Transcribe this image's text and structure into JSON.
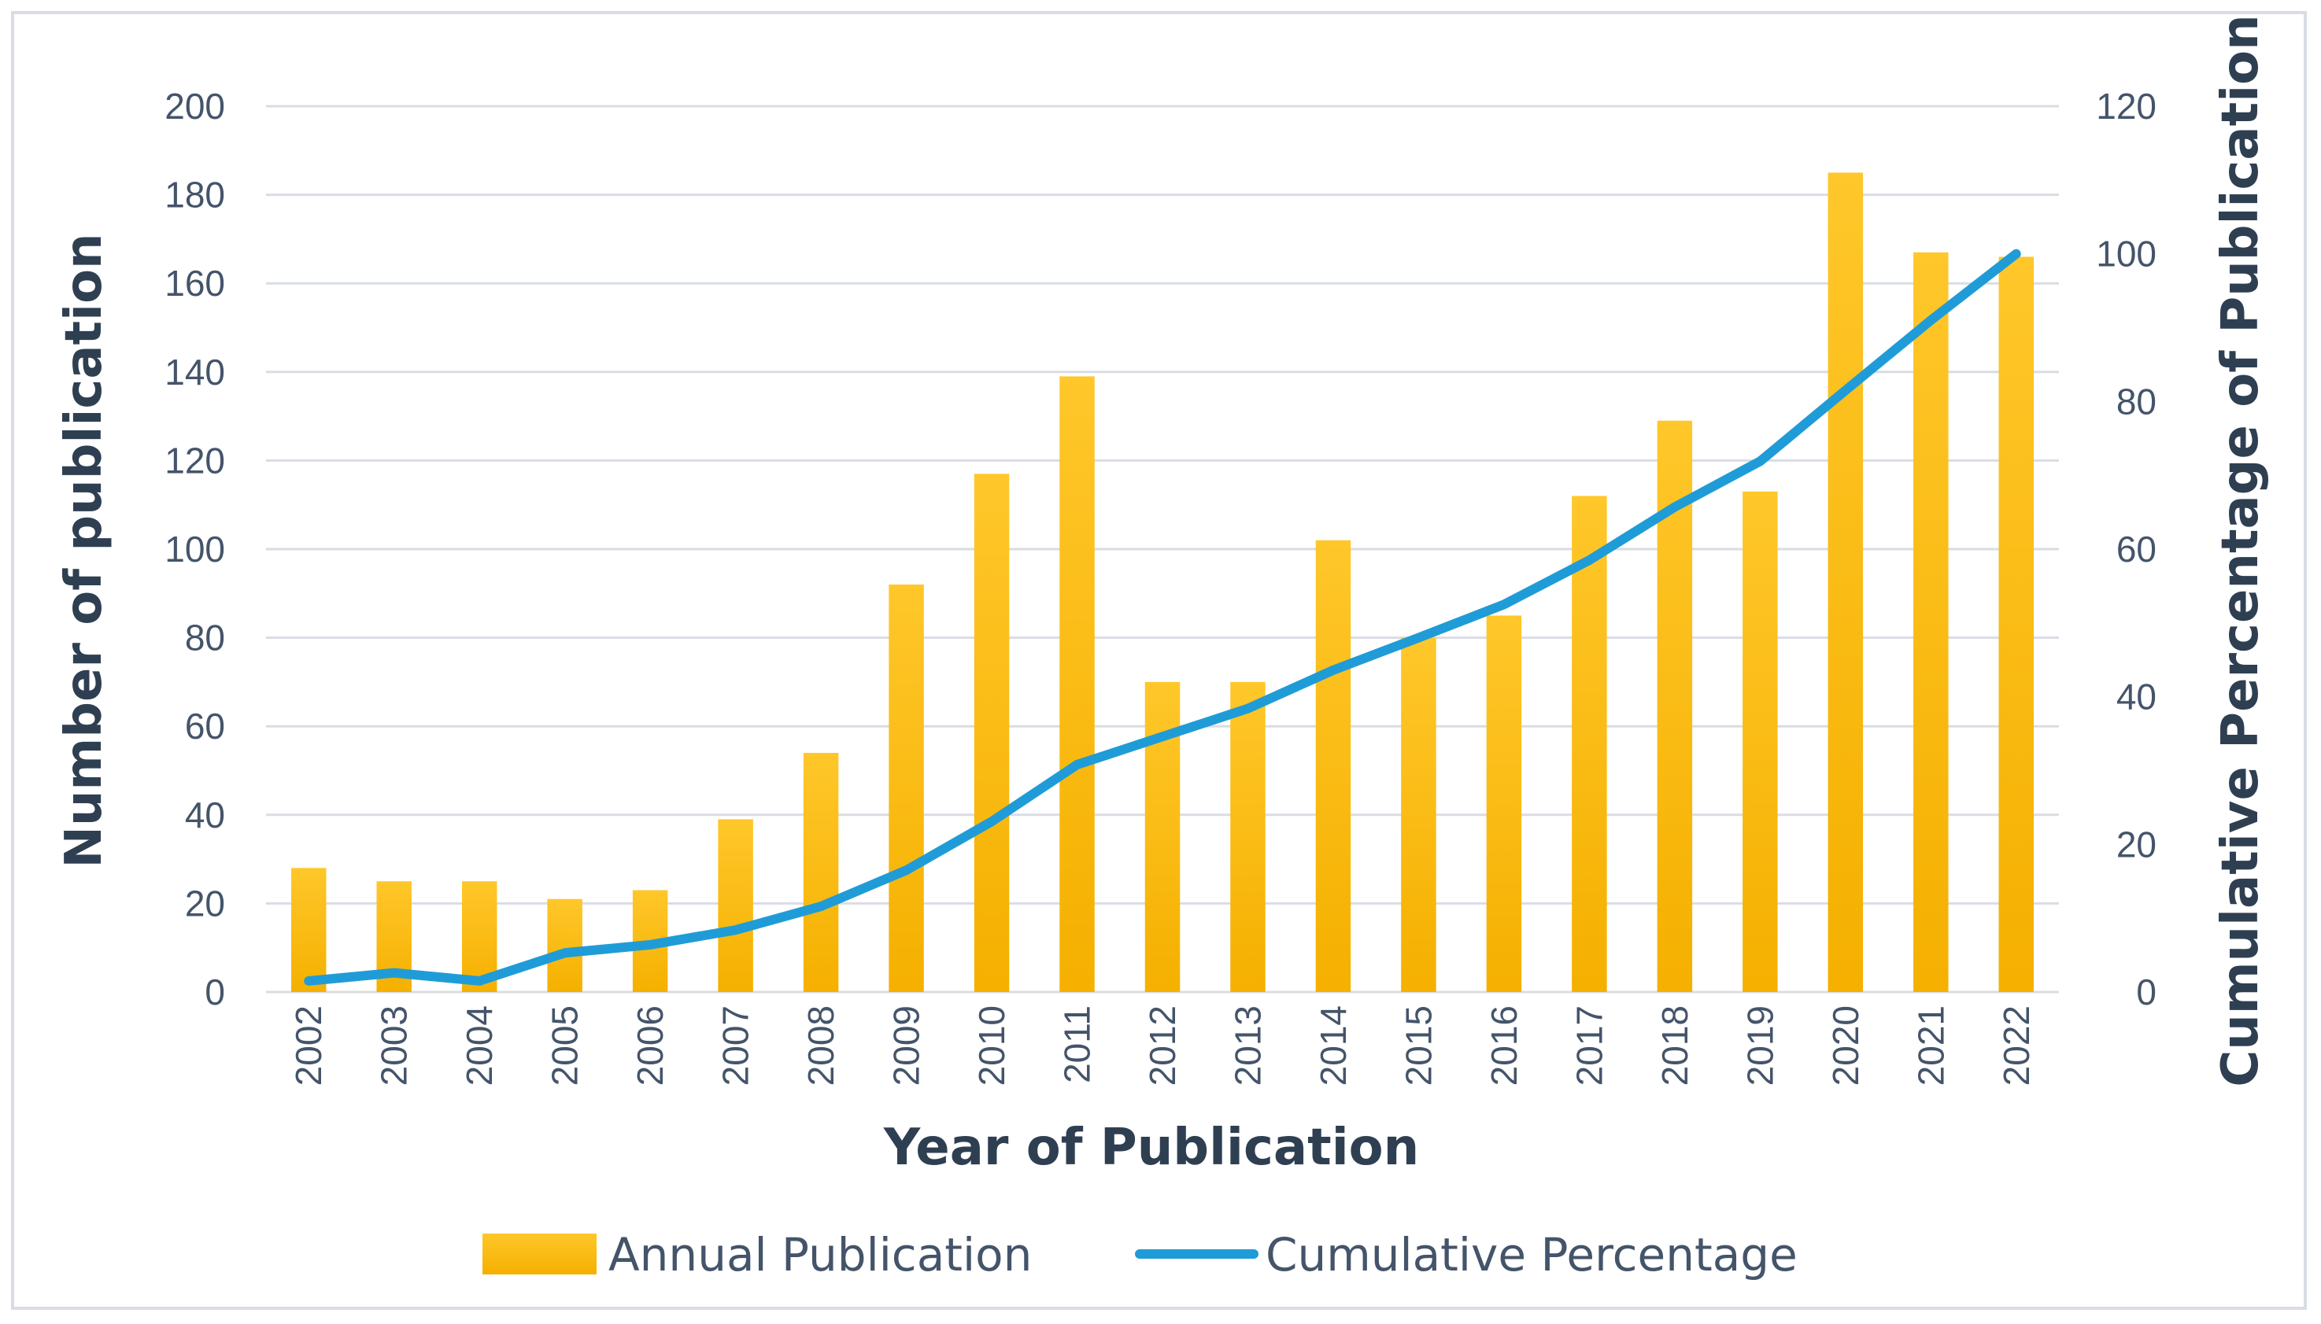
{
  "colors": {
    "bar": "#ffc000",
    "bar_dark": "#f5b000",
    "line": "#1f9cd7",
    "grid": "#d9dde3",
    "text": "#44546a",
    "title": "#2f3f52"
  },
  "chart_data": {
    "type": "bar",
    "title": "",
    "xlabel": "Year of Publication",
    "ylabel": "Number of publication",
    "y2label": "Cumulative Percentage of Publication",
    "ylim": [
      0,
      200
    ],
    "y2lim": [
      0,
      120
    ],
    "yticks": [
      "0",
      "20",
      "40",
      "60",
      "80",
      "100",
      "120",
      "140",
      "160",
      "180",
      "200"
    ],
    "y2ticks": [
      "0",
      "20",
      "40",
      "60",
      "80",
      "100",
      "120"
    ],
    "grid": true,
    "legend_position": "bottom-center",
    "categories": [
      "2002",
      "2003",
      "2004",
      "2005",
      "2006",
      "2007",
      "2008",
      "2009",
      "2010",
      "2011",
      "2012",
      "2013",
      "2014",
      "2015",
      "2016",
      "2017",
      "2018",
      "2019",
      "2020",
      "2021",
      "2022"
    ],
    "series": [
      {
        "name": "Annual Publication",
        "type": "bar",
        "axis": "left",
        "values": [
          28,
          25,
          25,
          21,
          23,
          39,
          54,
          92,
          117,
          139,
          70,
          70,
          102,
          80,
          85,
          112,
          129,
          113,
          185,
          167,
          166
        ]
      },
      {
        "name": "Cumulative Percentage",
        "type": "line",
        "axis": "right",
        "values": [
          1.5,
          2.6,
          1.5,
          5.3,
          6.4,
          8.4,
          11.6,
          16.5,
          23.1,
          30.8,
          34.6,
          38.4,
          43.6,
          48.0,
          52.5,
          58.5,
          65.7,
          71.9,
          81.5,
          91.0,
          100.0
        ]
      }
    ]
  },
  "legend": {
    "bar_label": "Annual Publication",
    "line_label": "Cumulative Percentage"
  }
}
